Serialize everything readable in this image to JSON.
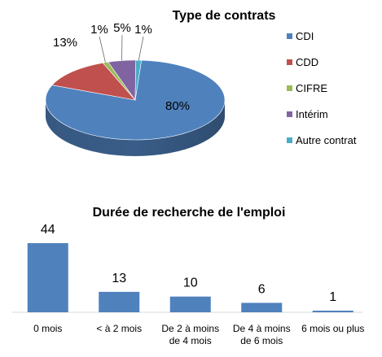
{
  "chart_data": [
    {
      "type": "pie",
      "title": "Type de contrats",
      "categories": [
        "CDI",
        "CDD",
        "CIFRE",
        "Intérim",
        "Autre contrat"
      ],
      "values": [
        80,
        13,
        1,
        5,
        1
      ],
      "data_labels": [
        "80%",
        "13%",
        "1%",
        "5%",
        "1%"
      ],
      "colors": [
        "#4F81BD",
        "#C0504D",
        "#9BBB59",
        "#8064A2",
        "#4BACC6"
      ],
      "legend_position": "right",
      "style": "3d"
    },
    {
      "type": "bar",
      "title": "Durée de recherche de l'emploi",
      "categories": [
        "0 mois",
        "< à 2 mois",
        "De 2 à moins de 4 mois",
        "De 4 à moins de 6 mois",
        "6 mois ou plus"
      ],
      "category_lines": [
        [
          "0 mois"
        ],
        [
          "< à 2 mois"
        ],
        [
          "De 2 à moins",
          "de 4 mois"
        ],
        [
          "De 4 à moins",
          "de 6 mois"
        ],
        [
          "6 mois ou plus"
        ]
      ],
      "values": [
        44,
        13,
        10,
        6,
        1
      ],
      "data_labels": [
        "44",
        "13",
        "10",
        "6",
        "1"
      ],
      "color": "#4F81BD",
      "grid": false,
      "ylim": [
        0,
        44
      ]
    }
  ]
}
